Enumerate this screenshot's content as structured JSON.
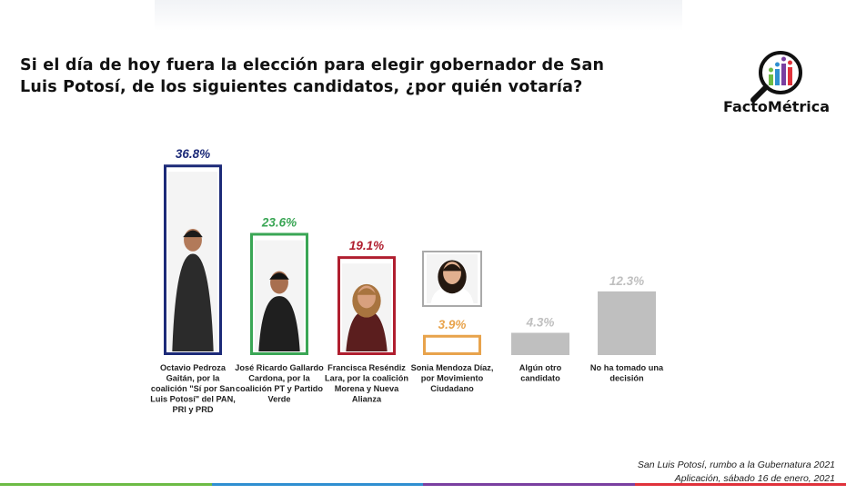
{
  "title": "Si el día de hoy fuera la elección para elegir gobernador de San Luis Potosí, de los siguientes candidatos, ¿por quién votaría?",
  "logo": {
    "text": "FactoMétrica",
    "icon": "magnifier-bar-chart-icon"
  },
  "footer": {
    "line1": "San Luis Potosí, rumbo a la Gubernatura 2021",
    "line2": "Aplicación, sábado 16 de enero, 2021"
  },
  "bottom_bar_colors": [
    "#6dbb45",
    "#2f8fd1",
    "#7a3fa0",
    "#e0323b"
  ],
  "chart_data": {
    "type": "bar",
    "title": "Si el día de hoy fuera la elección para elegir gobernador de San Luis Potosí, de los siguientes candidatos, ¿por quién votaría?",
    "ylim": [
      0,
      40
    ],
    "grid": false,
    "legend": "none",
    "categories": [
      "Octavio Pedroza Gaitán, por la coalición \"Sí por San Luis Potosí\" del PAN, PRI y PRD",
      "José Ricardo Gallardo Cardona, por la coalición PT y Partido Verde",
      "Francisca Reséndiz Lara, por la coalición Morena y Nueva Alianza",
      "Sonia Mendoza Díaz, por Movimiento Ciudadano",
      "Algún otro candidato",
      "No ha tomado una decisión"
    ],
    "category_lines": [
      [
        "Octavio Pedroza",
        "Gaitán, por la",
        "coalición \"Sí por San",
        "Luis Potosí\" del PAN,",
        "PRI y PRD"
      ],
      [
        "José Ricardo Gallardo",
        "Cardona, por la",
        "coalición PT y Partido",
        "Verde"
      ],
      [
        "Francisca Reséndiz",
        "Lara, por la coalición",
        "Morena y Nueva",
        "Alianza"
      ],
      [
        "Sonia Mendoza Díaz,",
        "por Movimiento",
        "Ciudadano"
      ],
      [
        "Algún otro",
        "candidato"
      ],
      [
        "No ha tomado una",
        "decisión"
      ]
    ],
    "values": [
      36.8,
      23.6,
      19.1,
      3.9,
      4.3,
      12.3
    ],
    "labels": [
      "36.8%",
      "23.6%",
      "19.1%",
      "3.9%",
      "4.3%",
      "12.3%"
    ],
    "colors": [
      "#1c2a78",
      "#3aa655",
      "#b01e2f",
      "#e8a34c",
      "#bfbfbf",
      "#bfbfbf"
    ],
    "styles": [
      "outline",
      "outline",
      "outline",
      "outline",
      "filled",
      "filled"
    ],
    "photos": [
      "candidate-photo",
      "candidate-photo",
      "candidate-photo",
      "candidate-photo",
      null,
      null
    ]
  }
}
